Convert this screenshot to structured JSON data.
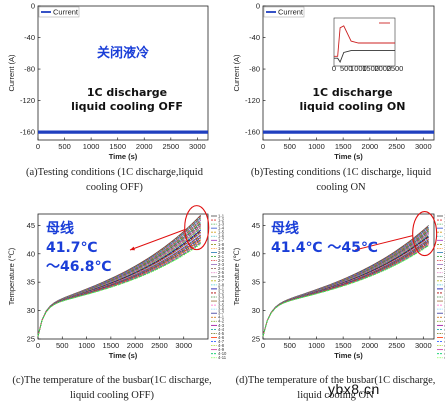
{
  "chart_data": [
    {
      "id": "a",
      "type": "line",
      "xlabel": "Time (s)",
      "ylabel": "Current (A)",
      "xlim": [
        0,
        3200
      ],
      "ylim": [
        -170,
        0
      ],
      "xticks": [
        0,
        500,
        1000,
        1500,
        2000,
        2500,
        3000
      ],
      "yticks": [
        0,
        -40,
        -80,
        -120,
        -160
      ],
      "legend": [
        "Current"
      ],
      "legend_position": "top-left",
      "series": [
        {
          "name": "Current",
          "color": "#1f3fbf",
          "x": [
            0,
            3200
          ],
          "y": [
            -160,
            -160
          ]
        }
      ],
      "annotations": [
        "关闭液冷",
        "1C discharge",
        "liquid cooling OFF"
      ],
      "caption": "(a)Testing conditions (1C discharge,liquid cooling OFF)"
    },
    {
      "id": "b",
      "type": "line",
      "xlabel": "Time (s)",
      "ylabel": "Current (A)",
      "xlim": [
        0,
        3200
      ],
      "ylim": [
        -170,
        0
      ],
      "xticks": [
        0,
        500,
        1000,
        1500,
        2000,
        2500,
        3000
      ],
      "yticks": [
        0,
        -40,
        -80,
        -120,
        -160
      ],
      "legend": [
        "Current"
      ],
      "legend_position": "top-left",
      "series": [
        {
          "name": "Current",
          "color": "#1f3fbf",
          "x": [
            0,
            3200
          ],
          "y": [
            -160,
            -160
          ]
        }
      ],
      "annotations": [
        "1C discharge",
        "liquid cooling ON"
      ],
      "inset": {
        "xticks": [
          "0",
          "500",
          "1000",
          "1500",
          "2000",
          "2500"
        ],
        "series": [
          {
            "color": "#cc2222",
            "x": [
              0,
              150,
              250,
              400,
              700,
              1000,
              2500
            ],
            "y": [
              0.15,
              0.15,
              0.9,
              0.95,
              0.55,
              0.5,
              0.5
            ]
          },
          {
            "color": "#333333",
            "x": [
              0,
              150,
              250,
              400,
              700,
              1000,
              2500
            ],
            "y": [
              0.1,
              0.1,
              0.0,
              0.25,
              0.3,
              0.3,
              0.3
            ]
          }
        ]
      },
      "caption": "(b)Testing conditions (1C discharge, liquid cooling ON"
    },
    {
      "id": "c",
      "type": "line",
      "xlabel": "Time (s)",
      "ylabel": "Temperature (℃)",
      "xlim": [
        0,
        3500
      ],
      "ylim": [
        25,
        47
      ],
      "xticks": [
        0,
        500,
        1000,
        1500,
        2000,
        2500,
        3000
      ],
      "yticks": [
        25,
        30,
        35,
        40,
        45
      ],
      "legend": [
        "1-1",
        "1-2",
        "1-3",
        "1-4",
        "1-5",
        "1-6",
        "1-7",
        "1-8",
        "1-9",
        "2-0",
        "2-1",
        "2-2",
        "2-3",
        "2-4",
        "2-5",
        "2-6",
        "2-7",
        "2-8",
        "3-1",
        "3-2",
        "3-3",
        "3-4",
        "3-5",
        "3-6",
        "3-7",
        "4-1",
        "4-2",
        "4-3",
        "4-4",
        "4-5",
        "4-6",
        "4-7",
        "4-8",
        "4-9",
        "4-10",
        "4-11"
      ],
      "legend_position": "right",
      "series_summary": {
        "start": 25.5,
        "end_min": 41.7,
        "end_max": 46.8,
        "end_time": 3350
      },
      "annotations": [
        "母线",
        "41.7℃",
        "～46.8℃"
      ],
      "caption": "(c)The temperature of the busbar(1C discharge, liquid cooling OFF)"
    },
    {
      "id": "d",
      "type": "line",
      "xlabel": "Time (s)",
      "ylabel": "Temperature (℃)",
      "xlim": [
        0,
        3200
      ],
      "ylim": [
        25,
        47
      ],
      "xticks": [
        0,
        500,
        1000,
        1500,
        2000,
        2500,
        3000
      ],
      "yticks": [
        25,
        30,
        35,
        40,
        45
      ],
      "legend": [
        "1-1",
        "1-2",
        "1-3",
        "1-4",
        "1-5",
        "1-6",
        "1-7",
        "1-8",
        "1-9",
        "2-0",
        "2-1",
        "2-2",
        "2-3",
        "2-4",
        "2-5",
        "2-6",
        "2-7",
        "2-8",
        "3-1",
        "3-2",
        "3-3",
        "3-4",
        "3-5",
        "3-6",
        "3-7",
        "4-1",
        "4-2",
        "4-3",
        "4-4",
        "4-5",
        "4-6",
        "4-7",
        "4-8",
        "4-9",
        "4-10",
        "4-11"
      ],
      "legend_position": "right",
      "series_summary": {
        "start": 25.5,
        "end_min": 41.4,
        "end_max": 45.0,
        "end_time": 3100
      },
      "annotations": [
        "母线",
        "41.4℃ ～45℃"
      ],
      "caption": "(d)The temperature of the busbar(1C discharge, liquid cooling ON"
    }
  ],
  "series_colors": [
    "#444444",
    "#e03030",
    "#30a030",
    "#3050d0",
    "#d0a020",
    "#20b0b0",
    "#a030c0",
    "#808000",
    "#ff7f0e",
    "#1f77b4",
    "#2ca02c",
    "#d62728",
    "#9467bd",
    "#8c564b",
    "#e377c2",
    "#7f7f7f",
    "#bcbd22",
    "#17becf",
    "#0000aa",
    "#aa0000",
    "#006600",
    "#996633",
    "#ff66cc",
    "#66ccff",
    "#333399",
    "#cc6600",
    "#669900",
    "#990099",
    "#009999",
    "#666600",
    "#ff3300",
    "#3366ff",
    "#99cc00",
    "#cc3399",
    "#00cc66",
    "#66ff33"
  ],
  "watermark": "ybx8.cn"
}
